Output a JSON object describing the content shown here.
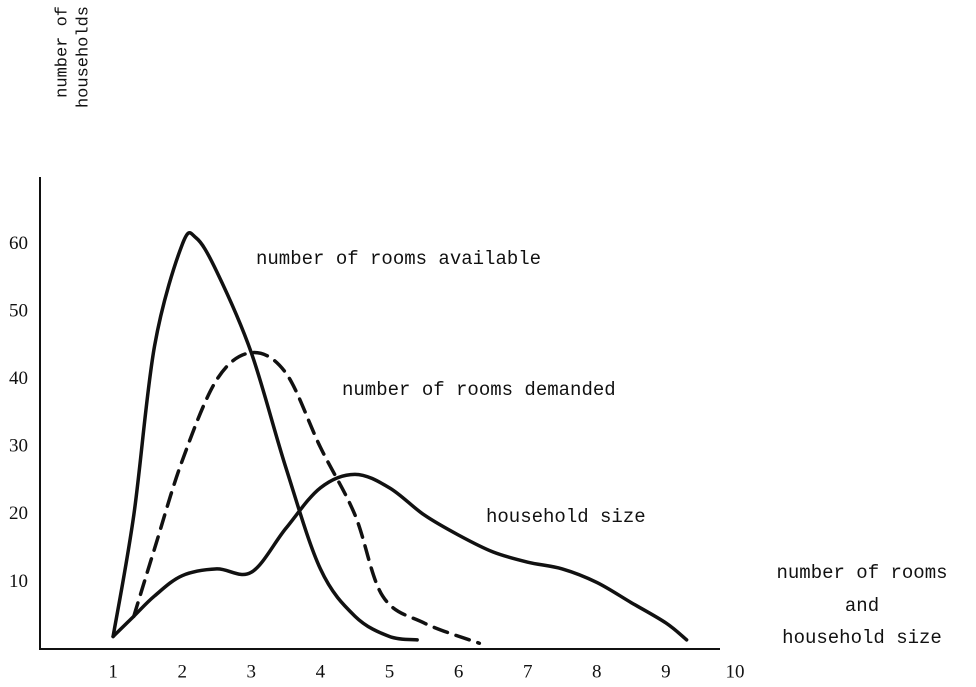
{
  "chart_data": {
    "type": "line",
    "y_label": [
      "number of",
      "households"
    ],
    "x_label": [
      "number of rooms",
      "and",
      "household size"
    ],
    "xlim": [
      0,
      10
    ],
    "ylim": [
      0,
      70
    ],
    "xticks": [
      1,
      2,
      3,
      4,
      5,
      6,
      7,
      8,
      9,
      10
    ],
    "yticks": [
      10,
      20,
      30,
      40,
      50,
      60
    ],
    "series": [
      {
        "name": "number of rooms available",
        "color": "#111111",
        "style": "solid",
        "x": [
          1.0,
          1.3,
          1.6,
          2.0,
          2.2,
          2.5,
          3.0,
          3.5,
          4.0,
          4.5,
          5.0,
          5.4
        ],
        "values": [
          2,
          20,
          45,
          60,
          61,
          56,
          44,
          27,
          12,
          5,
          2,
          1.5
        ]
      },
      {
        "name": "number of rooms demanded",
        "color": "#111111",
        "style": "dashed",
        "x": [
          1.3,
          1.6,
          2.0,
          2.5,
          3.0,
          3.5,
          4.0,
          4.5,
          4.9,
          5.5,
          6.3
        ],
        "values": [
          5,
          15,
          28,
          40,
          44,
          41,
          30,
          20,
          8,
          4,
          1
        ]
      },
      {
        "name": "household size",
        "color": "#111111",
        "style": "solid",
        "x": [
          1.0,
          1.3,
          1.6,
          2.0,
          2.5,
          3.0,
          3.5,
          4.0,
          4.5,
          5.0,
          5.5,
          6.0,
          6.5,
          7.0,
          7.5,
          8.0,
          8.5,
          9.0,
          9.3
        ],
        "values": [
          2,
          5,
          8,
          11,
          12,
          11.5,
          18,
          24,
          26,
          24,
          20,
          17,
          14.5,
          13,
          12,
          10,
          7,
          4,
          1.5
        ]
      }
    ]
  }
}
